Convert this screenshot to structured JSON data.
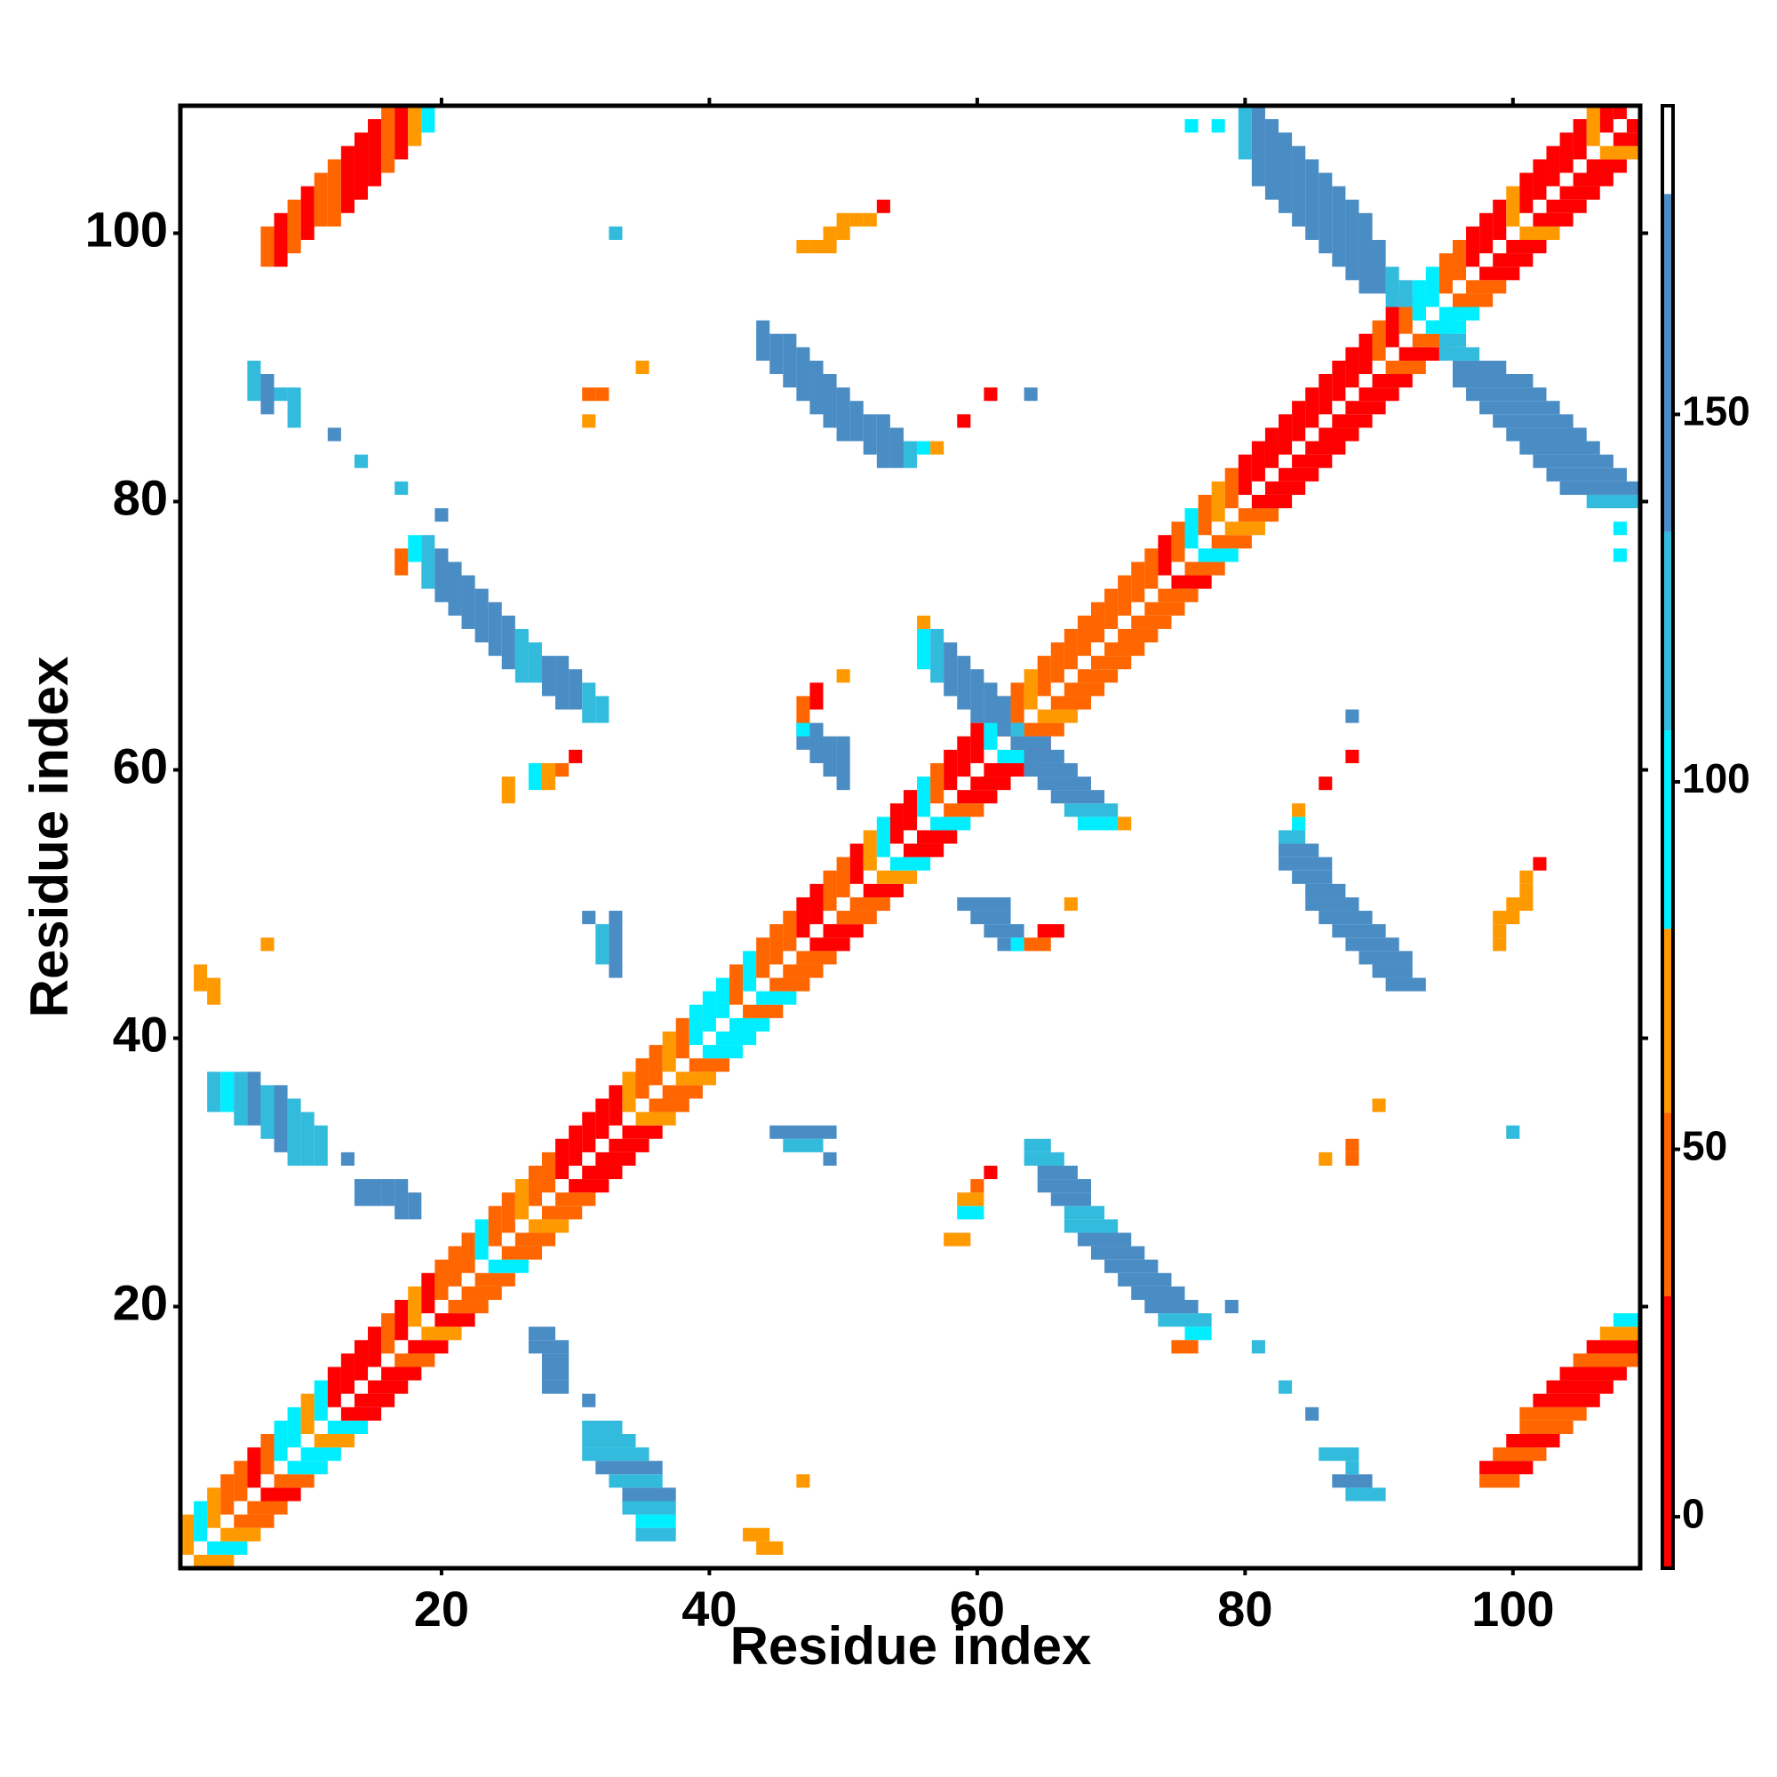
{
  "chart_data": {
    "type": "heatmap",
    "xlabel": "Residue index",
    "ylabel": "Residue index",
    "xlim": [
      0.5,
      109.5
    ],
    "ylim": [
      0.5,
      109.5
    ],
    "xticks": [
      20,
      40,
      60,
      80,
      100
    ],
    "yticks": [
      20,
      40,
      60,
      80,
      100
    ],
    "symmetric": true,
    "runs": [
      [
        1,
        2,
        4,
        60
      ],
      [
        2,
        3,
        5,
        90
      ],
      [
        3,
        4,
        6,
        60
      ],
      [
        4,
        5,
        7,
        45
      ],
      [
        5,
        6,
        8,
        45
      ],
      [
        6,
        7,
        9,
        10
      ],
      [
        7,
        8,
        10,
        45
      ],
      [
        8,
        9,
        11,
        90
      ],
      [
        9,
        10,
        12,
        90
      ],
      [
        10,
        11,
        13,
        60
      ],
      [
        11,
        12,
        14,
        90
      ],
      [
        12,
        13,
        15,
        10
      ],
      [
        13,
        14,
        16,
        10
      ],
      [
        14,
        15,
        17,
        10
      ],
      [
        15,
        16,
        18,
        10
      ],
      [
        16,
        17,
        19,
        45
      ],
      [
        17,
        18,
        20,
        10
      ],
      [
        18,
        19,
        21,
        60
      ],
      [
        19,
        20,
        22,
        10
      ],
      [
        20,
        21,
        23,
        45
      ],
      [
        21,
        22,
        24,
        45
      ],
      [
        22,
        23,
        25,
        45
      ],
      [
        23,
        24,
        26,
        90
      ],
      [
        24,
        25,
        27,
        45
      ],
      [
        25,
        26,
        28,
        45
      ],
      [
        26,
        27,
        29,
        60
      ],
      [
        27,
        28,
        30,
        45
      ],
      [
        28,
        29,
        31,
        45
      ],
      [
        29,
        30,
        32,
        10
      ],
      [
        30,
        31,
        33,
        10
      ],
      [
        31,
        32,
        34,
        10
      ],
      [
        32,
        33,
        35,
        10
      ],
      [
        33,
        34,
        36,
        10
      ],
      [
        34,
        35,
        37,
        60
      ],
      [
        35,
        36,
        38,
        45
      ],
      [
        36,
        37,
        39,
        45
      ],
      [
        37,
        38,
        40,
        60
      ],
      [
        38,
        39,
        41,
        45
      ],
      [
        39,
        40,
        42,
        90
      ],
      [
        40,
        41,
        43,
        90
      ],
      [
        41,
        42,
        44,
        90
      ],
      [
        42,
        43,
        45,
        45
      ],
      [
        43,
        44,
        46,
        90
      ],
      [
        44,
        45,
        47,
        45
      ],
      [
        45,
        46,
        48,
        45
      ],
      [
        46,
        47,
        49,
        45
      ],
      [
        47,
        48,
        50,
        10
      ],
      [
        48,
        49,
        51,
        10
      ],
      [
        49,
        50,
        52,
        45
      ],
      [
        50,
        51,
        53,
        45
      ],
      [
        51,
        52,
        54,
        10
      ],
      [
        52,
        53,
        55,
        60
      ],
      [
        53,
        54,
        56,
        90
      ],
      [
        54,
        55,
        57,
        10
      ],
      [
        55,
        56,
        58,
        10
      ],
      [
        56,
        57,
        59,
        100
      ],
      [
        57,
        58,
        60,
        45
      ],
      [
        58,
        59,
        61,
        10
      ],
      [
        59,
        60,
        62,
        10
      ],
      [
        60,
        61,
        63,
        10
      ],
      [
        61,
        62,
        64,
        90
      ],
      [
        62,
        63,
        65,
        10
      ],
      [
        63,
        64,
        66,
        45
      ],
      [
        64,
        65,
        67,
        60
      ],
      [
        65,
        66,
        68,
        45
      ],
      [
        66,
        67,
        69,
        45
      ],
      [
        67,
        68,
        70,
        45
      ],
      [
        68,
        69,
        71,
        45
      ],
      [
        69,
        70,
        72,
        45
      ],
      [
        70,
        71,
        73,
        45
      ],
      [
        71,
        72,
        74,
        45
      ],
      [
        72,
        73,
        75,
        45
      ],
      [
        73,
        74,
        76,
        45
      ],
      [
        74,
        75,
        77,
        10
      ],
      [
        75,
        76,
        78,
        45
      ],
      [
        76,
        77,
        79,
        100
      ],
      [
        77,
        78,
        80,
        45
      ],
      [
        78,
        79,
        81,
        60
      ],
      [
        79,
        80,
        82,
        45
      ],
      [
        80,
        81,
        83,
        10
      ],
      [
        81,
        82,
        84,
        10
      ],
      [
        82,
        83,
        85,
        10
      ],
      [
        83,
        84,
        86,
        10
      ],
      [
        84,
        85,
        87,
        10
      ],
      [
        85,
        86,
        88,
        10
      ],
      [
        86,
        87,
        89,
        10
      ],
      [
        87,
        88,
        90,
        10
      ],
      [
        88,
        89,
        91,
        10
      ],
      [
        89,
        90,
        92,
        10
      ],
      [
        90,
        91,
        93,
        45
      ],
      [
        91,
        92,
        94,
        10
      ],
      [
        92,
        93,
        95,
        45
      ],
      [
        93,
        94,
        96,
        100
      ],
      [
        94,
        95,
        97,
        100
      ],
      [
        95,
        96,
        98,
        45
      ],
      [
        96,
        97,
        99,
        45
      ],
      [
        97,
        98,
        100,
        10
      ],
      [
        98,
        99,
        101,
        10
      ],
      [
        99,
        100,
        102,
        10
      ],
      [
        100,
        101,
        103,
        60
      ],
      [
        101,
        102,
        104,
        10
      ],
      [
        102,
        103,
        105,
        10
      ],
      [
        103,
        104,
        106,
        10
      ],
      [
        104,
        105,
        107,
        10
      ],
      [
        105,
        106,
        108,
        10
      ],
      [
        106,
        107,
        109,
        60
      ],
      [
        107,
        108,
        109,
        10
      ],
      [
        108,
        109,
        109,
        10
      ],
      [
        7,
        98,
        100,
        45
      ],
      [
        8,
        98,
        101,
        10
      ],
      [
        9,
        99,
        102,
        45
      ],
      [
        10,
        100,
        103,
        10
      ],
      [
        11,
        101,
        104,
        45
      ],
      [
        12,
        101,
        105,
        45
      ],
      [
        13,
        102,
        106,
        10
      ],
      [
        14,
        103,
        107,
        10
      ],
      [
        15,
        104,
        108,
        10
      ],
      [
        16,
        105,
        109,
        45
      ],
      [
        17,
        106,
        109,
        10
      ],
      [
        18,
        107,
        109,
        60
      ],
      [
        19,
        108,
        109,
        100
      ],
      [
        19,
        74,
        77,
        120
      ],
      [
        20,
        73,
        76,
        150
      ],
      [
        21,
        72,
        75,
        150
      ],
      [
        22,
        71,
        74,
        150
      ],
      [
        23,
        70,
        73,
        140
      ],
      [
        24,
        69,
        72,
        140
      ],
      [
        25,
        68,
        71,
        140
      ],
      [
        26,
        67,
        70,
        120
      ],
      [
        27,
        67,
        69,
        120
      ],
      [
        28,
        66,
        68,
        150
      ],
      [
        29,
        65,
        68,
        150
      ],
      [
        30,
        65,
        67,
        150
      ],
      [
        31,
        64,
        66,
        120
      ],
      [
        32,
        64,
        65,
        120
      ],
      [
        6,
        88,
        90,
        120
      ],
      [
        7,
        87,
        89,
        150
      ],
      [
        8,
        88,
        88,
        120
      ],
      [
        9,
        86,
        88,
        120
      ],
      [
        12,
        85,
        85,
        150
      ],
      [
        14,
        83,
        83,
        120
      ],
      [
        17,
        81,
        81,
        120
      ],
      [
        20,
        79,
        79,
        150
      ],
      [
        18,
        76,
        77,
        100
      ],
      [
        17,
        75,
        76,
        45
      ],
      [
        3,
        35,
        37,
        120
      ],
      [
        4,
        35,
        37,
        100
      ],
      [
        5,
        34,
        37,
        120
      ],
      [
        6,
        34,
        37,
        150
      ],
      [
        7,
        33,
        36,
        120
      ],
      [
        8,
        32,
        36,
        140
      ],
      [
        9,
        31,
        35,
        120
      ],
      [
        10,
        31,
        34,
        120
      ],
      [
        11,
        31,
        33,
        120
      ],
      [
        13,
        31,
        31,
        150
      ],
      [
        14,
        28,
        29,
        150
      ],
      [
        15,
        28,
        29,
        150
      ],
      [
        16,
        28,
        29,
        150
      ],
      [
        17,
        27,
        29,
        150
      ],
      [
        18,
        27,
        28,
        150
      ],
      [
        2,
        44,
        45,
        60
      ],
      [
        7,
        47,
        47,
        60
      ],
      [
        3,
        43,
        44,
        60
      ],
      [
        44,
        91,
        93,
        140
      ],
      [
        45,
        90,
        92,
        140
      ],
      [
        46,
        89,
        92,
        150
      ],
      [
        47,
        88,
        91,
        150
      ],
      [
        48,
        87,
        90,
        140
      ],
      [
        49,
        86,
        89,
        140
      ],
      [
        50,
        85,
        88,
        150
      ],
      [
        51,
        85,
        87,
        150
      ],
      [
        52,
        84,
        86,
        140
      ],
      [
        53,
        83,
        86,
        140
      ],
      [
        54,
        83,
        85,
        140
      ],
      [
        55,
        83,
        84,
        120
      ],
      [
        56,
        84,
        84,
        100
      ],
      [
        57,
        84,
        84,
        60
      ],
      [
        59,
        86,
        86,
        10
      ],
      [
        61,
        88,
        88,
        10
      ],
      [
        64,
        88,
        88,
        150
      ],
      [
        47,
        99,
        99,
        60
      ],
      [
        48,
        99,
        99,
        60
      ],
      [
        49,
        99,
        100,
        60
      ],
      [
        50,
        100,
        101,
        60
      ],
      [
        51,
        101,
        101,
        75
      ],
      [
        52,
        101,
        101,
        75
      ],
      [
        53,
        102,
        102,
        10
      ],
      [
        33,
        100,
        100,
        120
      ],
      [
        31,
        86,
        86,
        60
      ],
      [
        31,
        88,
        88,
        45
      ],
      [
        32,
        88,
        88,
        45
      ],
      [
        35,
        90,
        90,
        60
      ],
      [
        76,
        108,
        108,
        100
      ],
      [
        78,
        108,
        108,
        100
      ],
      [
        80,
        106,
        109,
        120
      ],
      [
        81,
        104,
        109,
        140
      ],
      [
        82,
        103,
        108,
        150
      ],
      [
        83,
        102,
        107,
        150
      ],
      [
        84,
        101,
        106,
        150
      ],
      [
        85,
        100,
        105,
        150
      ],
      [
        86,
        99,
        104,
        150
      ],
      [
        87,
        98,
        103,
        150
      ],
      [
        88,
        97,
        102,
        150
      ],
      [
        89,
        96,
        101,
        150
      ],
      [
        90,
        96,
        99,
        150
      ],
      [
        91,
        95,
        97,
        120
      ],
      [
        92,
        95,
        96,
        120
      ],
      [
        93,
        94,
        95,
        100
      ],
      [
        56,
        68,
        70,
        100
      ],
      [
        57,
        67,
        70,
        120
      ],
      [
        58,
        66,
        69,
        150
      ],
      [
        59,
        65,
        68,
        150
      ],
      [
        60,
        64,
        67,
        150
      ],
      [
        61,
        64,
        66,
        150
      ],
      [
        62,
        63,
        65,
        150
      ],
      [
        63,
        63,
        63,
        120
      ],
      [
        56,
        71,
        71,
        60
      ],
      [
        47,
        62,
        63,
        150
      ],
      [
        48,
        61,
        63,
        150
      ],
      [
        49,
        60,
        62,
        150
      ],
      [
        50,
        59,
        62,
        150
      ],
      [
        47,
        63,
        63,
        100
      ],
      [
        47,
        64,
        65,
        45
      ],
      [
        48,
        65,
        66,
        10
      ],
      [
        50,
        67,
        67,
        60
      ],
      [
        25,
        58,
        59,
        60
      ],
      [
        27,
        59,
        60,
        100
      ],
      [
        28,
        59,
        60,
        60
      ],
      [
        29,
        60,
        60,
        45
      ],
      [
        30,
        61,
        61,
        10
      ],
      [
        31,
        49,
        49,
        150
      ],
      [
        32,
        46,
        48,
        120
      ],
      [
        33,
        45,
        49,
        150
      ]
    ],
    "colorbar": {
      "lim": [
        -7,
        192
      ],
      "ticks": [
        0,
        50,
        100,
        150
      ],
      "bands": [
        {
          "min": -7,
          "max": 30,
          "color": "#ff0000"
        },
        {
          "min": 30,
          "max": 55,
          "color": "#ff6600"
        },
        {
          "min": 55,
          "max": 80,
          "color": "#ff9900"
        },
        {
          "min": 80,
          "max": 107,
          "color": "#00eeff"
        },
        {
          "min": 107,
          "max": 134,
          "color": "#33bbdd"
        },
        {
          "min": 134,
          "max": 180,
          "color": "#4a8cc4"
        },
        {
          "min": 180,
          "max": 192,
          "color": "#ffffff"
        }
      ]
    }
  }
}
